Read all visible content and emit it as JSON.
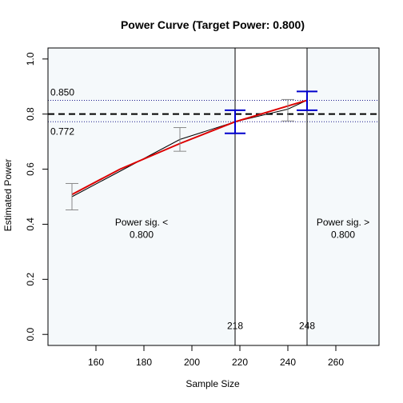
{
  "chart_data": {
    "type": "line",
    "title": "Power Curve (Target Power: 0.800)",
    "xlabel": "Sample Size",
    "ylabel": "Estimated Power",
    "xlim": [
      140,
      278
    ],
    "ylim": [
      -0.04,
      1.04
    ],
    "xticks": [
      160,
      180,
      200,
      220,
      240,
      260
    ],
    "yticks": [
      0.0,
      0.2,
      0.4,
      0.6,
      0.8,
      1.0
    ],
    "ytick_labels": [
      "0.0",
      "0.2",
      "0.4",
      "0.6",
      "0.8",
      "1.0"
    ],
    "target_power": 0.8,
    "band": [
      0.772,
      0.85
    ],
    "band_labels": [
      "0.850",
      "0.772"
    ],
    "series": [
      {
        "role": "observed",
        "color": "#000000",
        "points": [
          [
            150,
            0.5
          ],
          [
            195,
            0.708
          ],
          [
            218,
            0.772
          ],
          [
            240,
            0.818
          ],
          [
            248,
            0.85
          ]
        ]
      },
      {
        "role": "fitted",
        "color": "#dd0000",
        "points": [
          [
            150,
            0.508
          ],
          [
            170,
            0.6
          ],
          [
            195,
            0.693
          ],
          [
            218,
            0.772
          ],
          [
            248,
            0.85
          ]
        ]
      }
    ],
    "error_bars": [
      {
        "x": 150,
        "low": 0.452,
        "high": 0.548,
        "color": "#888888",
        "size": "small"
      },
      {
        "x": 195,
        "low": 0.665,
        "high": 0.751,
        "color": "#888888",
        "size": "small"
      },
      {
        "x": 240,
        "low": 0.775,
        "high": 0.853,
        "color": "#888888",
        "size": "small"
      },
      {
        "x": 218,
        "low": 0.73,
        "high": 0.814,
        "color": "#0000cc",
        "size": "large"
      },
      {
        "x": 248,
        "low": 0.814,
        "high": 0.882,
        "color": "#0000cc",
        "size": "large"
      }
    ],
    "crossings": [
      {
        "x": 218,
        "label": "218"
      },
      {
        "x": 248,
        "label": "248"
      }
    ],
    "regions": [
      {
        "label_line1": "Power sig. <",
        "label_line2": "0.800"
      },
      {
        "label_line1": "Power sig. >",
        "label_line2": "0.800"
      }
    ],
    "colors": {
      "region_fill": "#f5f9fb",
      "fit": "#dd0000",
      "crossing_ci": "#0000cc",
      "ci": "#888888"
    }
  }
}
